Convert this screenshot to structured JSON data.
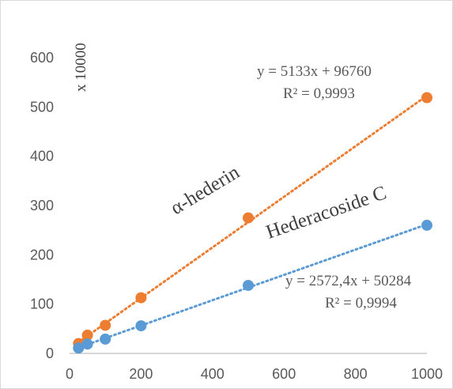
{
  "chart_data": {
    "type": "scatter",
    "xlim": [
      0,
      1000
    ],
    "ylim": [
      0,
      600
    ],
    "x_ticks": [
      0,
      200,
      400,
      600,
      800,
      1000
    ],
    "y_ticks": [
      0,
      100,
      200,
      300,
      400,
      500,
      600
    ],
    "y_unit_label": "x 10000",
    "grid": false,
    "legend": "none",
    "series": [
      {
        "color": "#ED7D31",
        "x": [
          25,
          50,
          100,
          200,
          500,
          1000
        ],
        "y": [
          20,
          37,
          57,
          113,
          275,
          519
        ],
        "trendline": {
          "type": "linear",
          "equation": "y = 5133x + 96760",
          "r2": "R² = 0,9993"
        },
        "annotation": "α-hederin"
      },
      {
        "color": "#5B9BD5",
        "x": [
          25,
          50,
          100,
          200,
          500,
          1000
        ],
        "y": [
          11,
          19,
          29,
          56,
          138,
          260
        ],
        "trendline": {
          "type": "linear",
          "equation": "y = 2572,4x + 50284",
          "r2": "R² = 0,9994"
        },
        "annotation": "Hederacoside C"
      }
    ]
  }
}
